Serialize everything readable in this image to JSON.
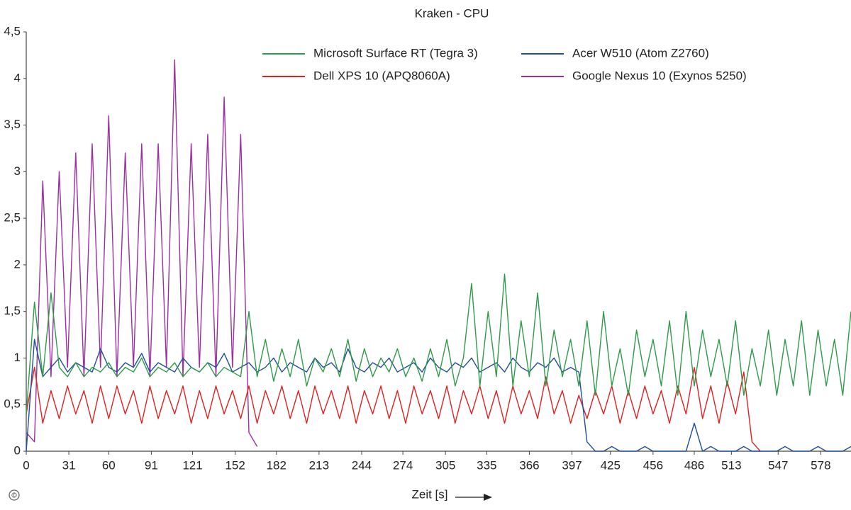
{
  "chart_data": {
    "type": "line",
    "title": "Kraken - CPU",
    "x_label": "Zeit [s]",
    "annotations": [
      "©"
    ],
    "x": [
      0,
      6,
      12,
      18,
      24,
      30,
      36,
      42,
      48,
      54,
      60,
      66,
      72,
      78,
      84,
      90,
      96,
      102,
      108,
      114,
      120,
      126,
      132,
      138,
      144,
      150,
      156,
      162,
      168,
      174,
      180,
      186,
      192,
      198,
      204,
      210,
      216,
      222,
      228,
      234,
      240,
      246,
      252,
      258,
      264,
      270,
      276,
      282,
      288,
      294,
      300,
      306,
      312,
      318,
      324,
      330,
      336,
      342,
      348,
      354,
      360,
      366,
      372,
      378,
      384,
      390,
      396,
      402,
      408,
      414,
      420,
      426,
      432,
      438,
      444,
      450,
      456,
      462,
      468,
      474,
      480,
      486,
      492,
      498,
      504,
      510,
      516,
      522,
      528,
      534,
      540,
      546,
      552,
      558,
      564,
      570,
      576,
      582,
      588,
      594,
      600
    ],
    "xlim": [
      0,
      600
    ],
    "xticks": [
      0,
      31,
      60,
      91,
      121,
      152,
      182,
      213,
      244,
      274,
      305,
      335,
      366,
      397,
      425,
      456,
      486,
      513,
      547,
      578
    ],
    "ylim": [
      0,
      4.5
    ],
    "yticks": [
      0,
      {
        "value": 0.5,
        "label": "0,5"
      },
      1,
      {
        "value": 1.5,
        "label": "1,5"
      },
      2,
      {
        "value": 2.5,
        "label": "2,5"
      },
      3,
      {
        "value": 3.5,
        "label": "3,5"
      },
      4,
      {
        "value": 4.5,
        "label": "4,5"
      }
    ],
    "series": [
      {
        "name": "Microsoft Surface RT (Tegra 3)",
        "color": "#2e9a4a",
        "values": [
          0.4,
          1.6,
          0.8,
          1.7,
          0.9,
          0.8,
          0.95,
          0.8,
          0.9,
          0.85,
          0.95,
          0.8,
          0.9,
          0.85,
          1.0,
          0.8,
          0.9,
          0.85,
          0.95,
          0.8,
          0.9,
          0.85,
          0.95,
          0.8,
          0.9,
          0.85,
          0.8,
          1.5,
          0.8,
          1.2,
          0.75,
          1.1,
          0.8,
          1.2,
          0.7,
          1.0,
          0.85,
          1.1,
          0.8,
          1.2,
          0.75,
          1.1,
          0.8,
          1.0,
          0.85,
          1.1,
          0.8,
          1.0,
          0.75,
          1.1,
          0.8,
          1.2,
          0.7,
          1.0,
          1.8,
          0.7,
          1.5,
          0.8,
          1.9,
          0.7,
          1.4,
          0.8,
          1.7,
          0.7,
          1.3,
          0.8,
          1.2,
          0.7,
          1.4,
          0.6,
          1.5,
          0.7,
          1.1,
          0.6,
          1.3,
          0.8,
          1.2,
          0.7,
          1.4,
          0.6,
          1.5,
          0.7,
          1.3,
          0.8,
          1.2,
          0.7,
          1.4,
          0.6,
          1.1,
          0.7,
          1.3,
          0.6,
          1.2,
          0.7,
          1.4,
          0.6,
          1.3,
          0.7,
          1.2,
          0.6,
          1.5
        ]
      },
      {
        "name": "Acer W510 (Atom Z2760)",
        "color": "#1f4e9a",
        "values": [
          0.0,
          1.2,
          0.8,
          0.9,
          1.0,
          0.85,
          0.95,
          0.9,
          0.85,
          1.1,
          0.9,
          0.85,
          0.95,
          0.9,
          1.05,
          0.85,
          0.95,
          0.9,
          0.85,
          1.0,
          0.9,
          0.85,
          0.95,
          0.9,
          1.05,
          0.85,
          0.9,
          0.95,
          0.85,
          0.9,
          1.0,
          0.85,
          0.95,
          0.9,
          0.85,
          1.0,
          0.9,
          0.95,
          0.85,
          1.1,
          0.9,
          0.85,
          0.95,
          0.9,
          1.0,
          0.85,
          0.9,
          0.95,
          0.85,
          1.0,
          0.9,
          0.85,
          0.95,
          0.9,
          1.0,
          0.85,
          0.9,
          0.95,
          0.85,
          1.0,
          0.9,
          0.85,
          0.95,
          0.9,
          1.0,
          0.85,
          0.9,
          0.85,
          0.1,
          0.0,
          0.0,
          0.05,
          0.0,
          0.0,
          0.0,
          0.05,
          0.0,
          0.0,
          0.0,
          0.0,
          0.0,
          0.3,
          0.0,
          0.05,
          0.0,
          0.0,
          0.0,
          0.05,
          0.0,
          0.0,
          0.0,
          0.0,
          0.05,
          0.0,
          0.0,
          0.0,
          0.05,
          0.0,
          0.0,
          0.0,
          0.05
        ]
      },
      {
        "name": "Dell XPS 10 (APQ8060A)",
        "color": "#e02020",
        "values": [
          0.4,
          0.9,
          0.3,
          0.65,
          0.35,
          0.7,
          0.4,
          0.65,
          0.3,
          0.7,
          0.35,
          0.7,
          0.4,
          0.65,
          0.3,
          0.7,
          0.35,
          0.65,
          0.4,
          0.7,
          0.3,
          0.65,
          0.35,
          0.7,
          0.4,
          0.65,
          0.35,
          0.7,
          0.3,
          0.65,
          0.4,
          0.7,
          0.35,
          0.65,
          0.3,
          0.7,
          0.4,
          0.65,
          0.35,
          0.7,
          0.3,
          0.65,
          0.4,
          0.7,
          0.35,
          0.65,
          0.3,
          0.7,
          0.4,
          0.65,
          0.35,
          0.7,
          0.3,
          0.65,
          0.4,
          0.7,
          0.35,
          0.65,
          0.3,
          0.7,
          0.4,
          0.65,
          0.35,
          0.8,
          0.4,
          0.65,
          0.3,
          0.6,
          0.35,
          0.65,
          0.4,
          0.7,
          0.3,
          0.65,
          0.35,
          0.7,
          0.4,
          0.65,
          0.3,
          0.7,
          0.4,
          0.9,
          0.35,
          0.7,
          0.3,
          0.75,
          0.4,
          0.85,
          0.1,
          0.0,
          null,
          null,
          null,
          null,
          null,
          null,
          null,
          null,
          null,
          null,
          null
        ]
      },
      {
        "name": "Google Nexus 10 (Exynos 5250)",
        "color": "#9b2fa0",
        "values": [
          0.2,
          0.1,
          2.9,
          0.8,
          3.0,
          0.9,
          3.2,
          0.8,
          3.3,
          0.9,
          3.6,
          0.8,
          3.2,
          0.9,
          3.3,
          0.8,
          3.3,
          0.9,
          4.2,
          0.8,
          3.3,
          0.9,
          3.4,
          0.8,
          3.8,
          0.9,
          3.4,
          0.2,
          0.05,
          null,
          null,
          null,
          null,
          null,
          null,
          null,
          null,
          null,
          null,
          null,
          null,
          null,
          null,
          null,
          null,
          null,
          null,
          null,
          null,
          null,
          null,
          null,
          null,
          null,
          null,
          null,
          null,
          null,
          null,
          null,
          null,
          null,
          null,
          null,
          null,
          null,
          null,
          null,
          null,
          null,
          null,
          null,
          null,
          null,
          null,
          null,
          null,
          null,
          null,
          null,
          null,
          null,
          null,
          null,
          null,
          null,
          null,
          null,
          null,
          null,
          null,
          null,
          null,
          null,
          null,
          null,
          null,
          null,
          null,
          null,
          null
        ]
      }
    ]
  }
}
